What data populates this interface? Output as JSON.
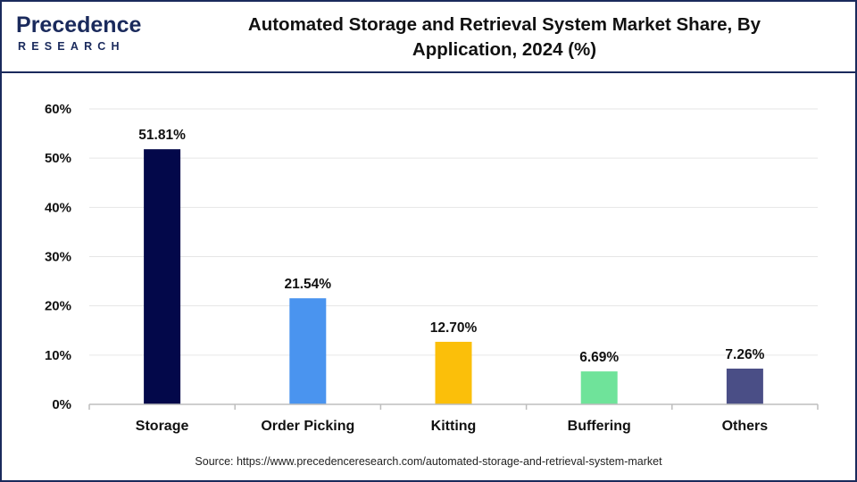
{
  "brand": {
    "name_word": "recedence",
    "name_initial": "P",
    "sub": "RESEARCH",
    "color": "#1a2a5c"
  },
  "header": {
    "title_line1": "Automated Storage and Retrieval System Market Share, By",
    "title_line2": "Application, 2024 (%)"
  },
  "chart_data": {
    "type": "bar",
    "title": "Automated Storage and Retrieval System Market Share, By Application, 2024 (%)",
    "xlabel": "",
    "ylabel": "",
    "ylim": [
      0,
      60
    ],
    "yticks": [
      0,
      10,
      20,
      30,
      40,
      50,
      60
    ],
    "ytick_labels": [
      "0%",
      "10%",
      "20%",
      "30%",
      "40%",
      "50%",
      "60%"
    ],
    "grid": true,
    "categories": [
      "Storage",
      "Order Picking",
      "Kitting",
      "Buffering",
      "Others"
    ],
    "values": [
      51.81,
      21.54,
      12.7,
      6.69,
      7.26
    ],
    "data_labels": [
      "51.81%",
      "21.54%",
      "12.70%",
      "6.69%",
      "7.26%"
    ],
    "colors": [
      "#03084a",
      "#4a94ef",
      "#fbbf0a",
      "#6fe39a",
      "#4a4e86"
    ]
  },
  "footer": {
    "source": "Source: https://www.precedenceresearch.com/automated-storage-and-retrieval-system-market"
  }
}
